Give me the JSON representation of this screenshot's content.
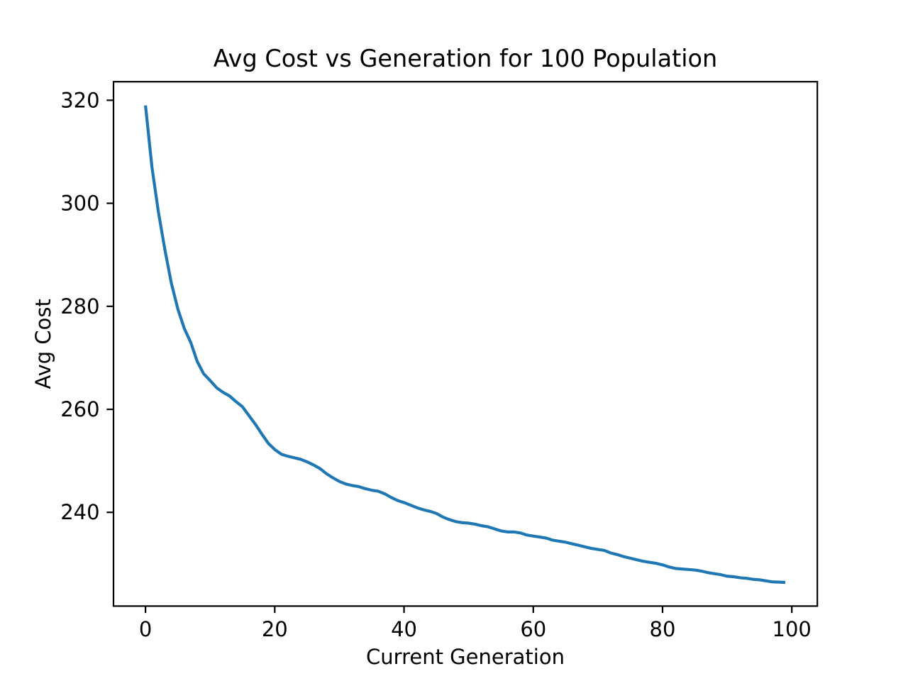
{
  "figure": {
    "background_color": "#ffffff",
    "spine_color": "#000000",
    "text_color": "#000000"
  },
  "chart_data": {
    "type": "line",
    "title": "Avg Cost vs Generation for 100 Population",
    "xlabel": "Current Generation",
    "ylabel": "Avg Cost",
    "grid": false,
    "legend": null,
    "markers": false,
    "xlim": [
      -4.95,
      103.95
    ],
    "ylim": [
      221.8,
      323.6
    ],
    "xticks": [
      0,
      20,
      40,
      60,
      80,
      100
    ],
    "yticks": [
      240,
      260,
      280,
      300,
      320
    ],
    "x": [
      0,
      1,
      2,
      3,
      4,
      5,
      6,
      7,
      8,
      9,
      10,
      11,
      12,
      13,
      14,
      15,
      16,
      17,
      18,
      19,
      20,
      21,
      22,
      23,
      24,
      25,
      26,
      27,
      28,
      29,
      30,
      31,
      32,
      33,
      34,
      35,
      36,
      37,
      38,
      39,
      40,
      41,
      42,
      43,
      44,
      45,
      46,
      47,
      48,
      49,
      50,
      51,
      52,
      53,
      54,
      55,
      56,
      57,
      58,
      59,
      60,
      61,
      62,
      63,
      64,
      65,
      66,
      67,
      68,
      69,
      70,
      71,
      72,
      73,
      74,
      75,
      76,
      77,
      78,
      79,
      80,
      81,
      82,
      83,
      84,
      85,
      86,
      87,
      88,
      89,
      90,
      91,
      92,
      93,
      94,
      95,
      96,
      97,
      98,
      99
    ],
    "series": [
      {
        "name": "Avg Cost",
        "color": "#1f77b4",
        "values": [
          319.0,
          307.0,
          298.3,
          291.0,
          284.5,
          279.5,
          275.7,
          273.0,
          269.3,
          266.9,
          265.6,
          264.2,
          263.3,
          262.6,
          261.5,
          260.5,
          258.8,
          257.1,
          255.2,
          253.4,
          252.2,
          251.3,
          250.9,
          250.6,
          250.3,
          249.8,
          249.2,
          248.5,
          247.5,
          246.7,
          246.0,
          245.5,
          245.2,
          245.0,
          244.6,
          244.3,
          244.1,
          243.6,
          242.9,
          242.3,
          241.9,
          241.4,
          240.9,
          240.5,
          240.2,
          239.8,
          239.1,
          238.6,
          238.2,
          238.0,
          237.9,
          237.7,
          237.4,
          237.2,
          236.8,
          236.4,
          236.2,
          236.2,
          236.0,
          235.6,
          235.4,
          235.2,
          235.0,
          234.6,
          234.4,
          234.2,
          233.9,
          233.6,
          233.3,
          233.0,
          232.8,
          232.6,
          232.1,
          231.8,
          231.4,
          231.1,
          230.8,
          230.5,
          230.3,
          230.1,
          229.8,
          229.4,
          229.1,
          229.0,
          228.9,
          228.8,
          228.6,
          228.3,
          228.1,
          227.9,
          227.6,
          227.5,
          227.3,
          227.2,
          227.0,
          226.9,
          226.7,
          226.5,
          226.45,
          226.4
        ]
      }
    ]
  }
}
